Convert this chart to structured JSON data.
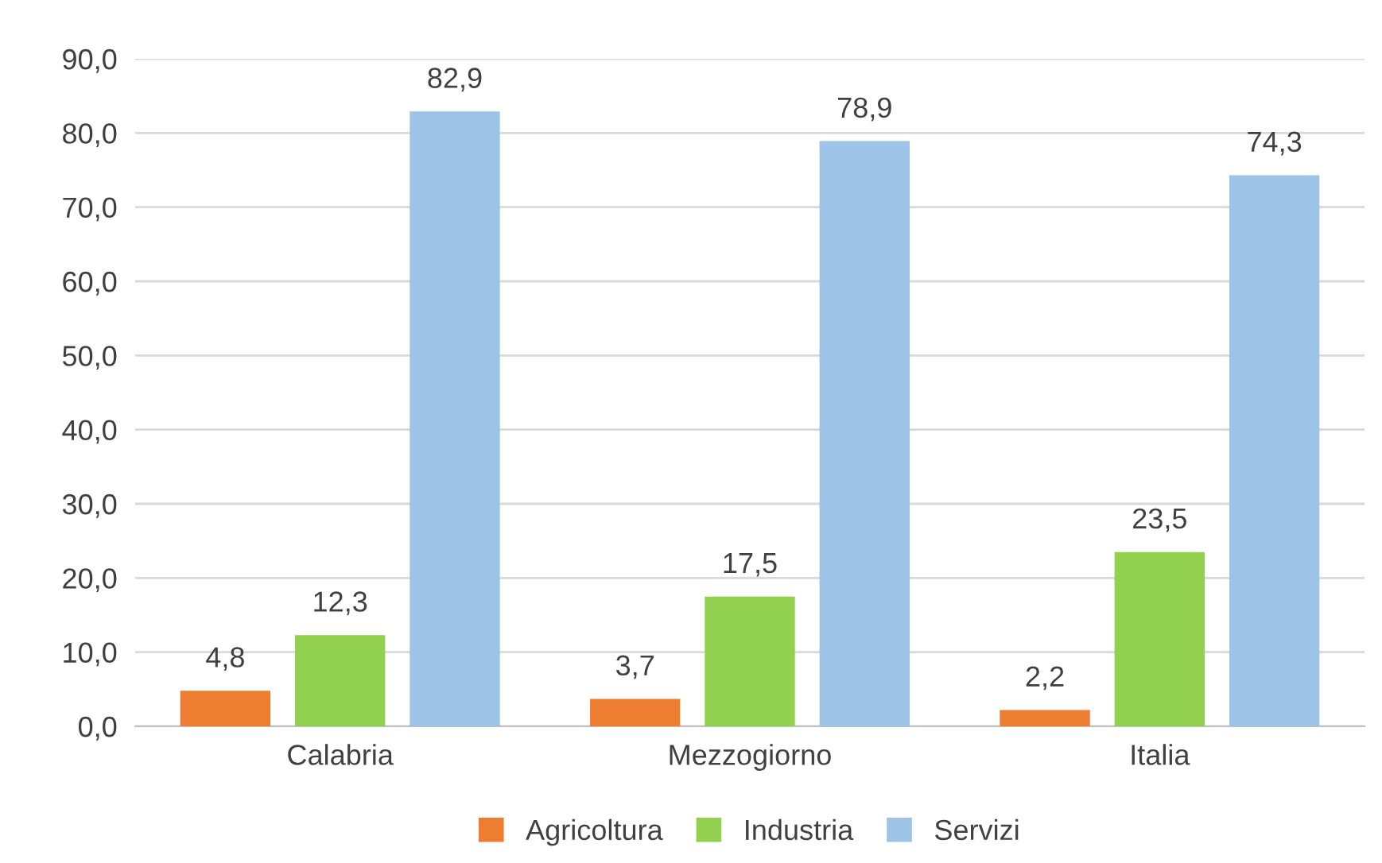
{
  "chart_data": {
    "type": "bar",
    "categories": [
      "Calabria",
      "Mezzogiorno",
      "Italia"
    ],
    "series": [
      {
        "name": "Agricoltura",
        "color": "#ed7d31",
        "values": [
          4.8,
          3.7,
          2.2
        ],
        "value_labels": [
          "4,8",
          "3,7",
          "2,2"
        ]
      },
      {
        "name": "Industria",
        "color": "#92d050",
        "values": [
          12.3,
          17.5,
          23.5
        ],
        "value_labels": [
          "12,3",
          "17,5",
          "23,5"
        ]
      },
      {
        "name": "Servizi",
        "color": "#9dc3e6",
        "values": [
          82.9,
          78.9,
          74.3
        ],
        "value_labels": [
          "82,9",
          "78,9",
          "74,3"
        ]
      }
    ],
    "ylim": [
      0,
      90
    ],
    "yticks": [
      {
        "value": 0,
        "label": "0,0"
      },
      {
        "value": 10,
        "label": "10,0"
      },
      {
        "value": 20,
        "label": "20,0"
      },
      {
        "value": 30,
        "label": "30,0"
      },
      {
        "value": 40,
        "label": "40,0"
      },
      {
        "value": 50,
        "label": "50,0"
      },
      {
        "value": 60,
        "label": "60,0"
      },
      {
        "value": 70,
        "label": "70,0"
      },
      {
        "value": 80,
        "label": "80,0"
      },
      {
        "value": 90,
        "label": "90,0"
      }
    ],
    "grid": "y",
    "legend": "bottom"
  }
}
